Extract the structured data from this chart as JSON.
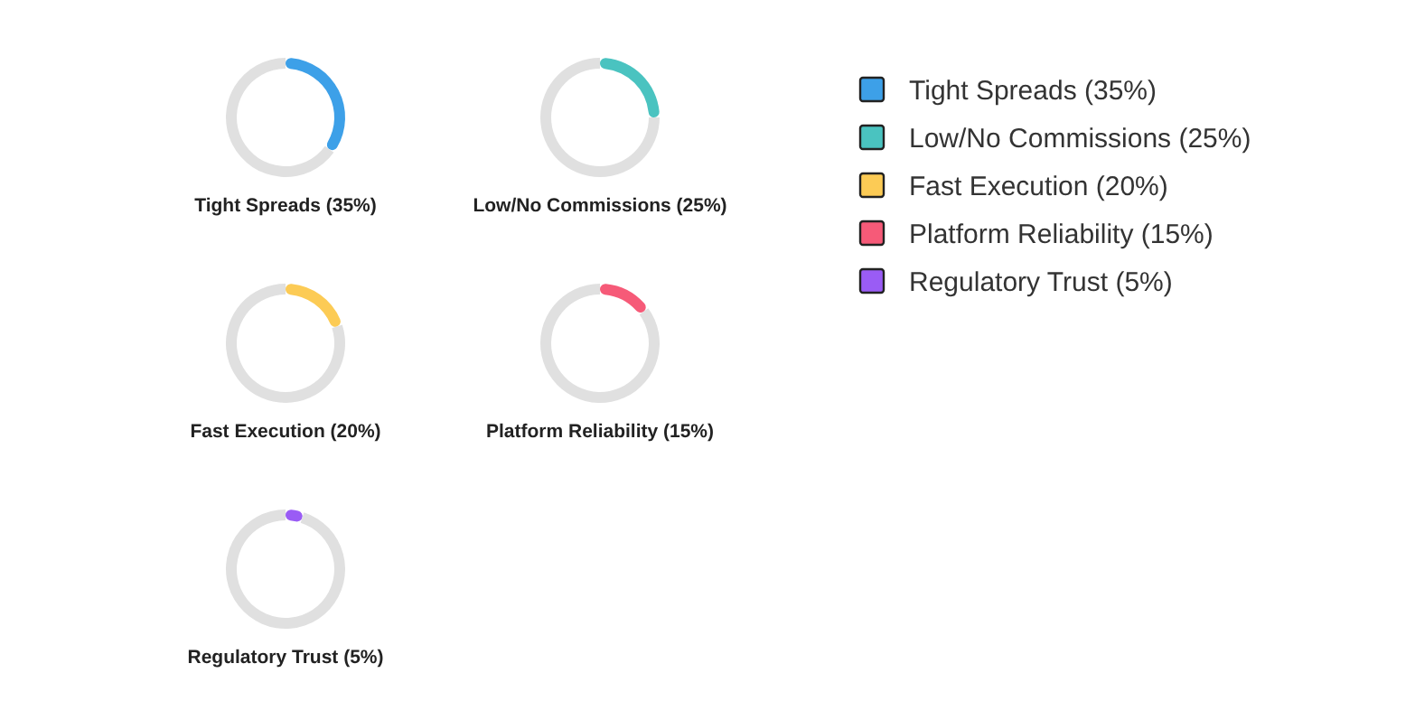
{
  "chart_data": [
    {
      "type": "donut",
      "title": "Tight Spreads (35%)",
      "categories": [
        "Tight Spreads (35%)",
        null
      ],
      "values": [
        35,
        65
      ],
      "colors": [
        "#3da0e8",
        "#e0e0e0"
      ],
      "legend": "right"
    },
    {
      "type": "donut",
      "title": "Low/No Commissions (25%)",
      "categories": [
        "Low/No Commissions (25%)",
        null
      ],
      "values": [
        25,
        75
      ],
      "colors": [
        "#4ac3c0",
        "#e0e0e0"
      ],
      "legend": "right"
    },
    {
      "type": "donut",
      "title": "Fast Execution (20%)",
      "categories": [
        "Fast Execution (20%)",
        null
      ],
      "values": [
        20,
        80
      ],
      "colors": [
        "#fccb55",
        "#e0e0e0"
      ],
      "legend": "right"
    },
    {
      "type": "donut",
      "title": "Platform Reliability (15%)",
      "categories": [
        "Platform Reliability (15%)",
        null
      ],
      "values": [
        15,
        85
      ],
      "colors": [
        "#f65a78",
        "#e0e0e0"
      ],
      "legend": "right"
    },
    {
      "type": "donut",
      "title": "Regulatory Trust (5%)",
      "categories": [
        "Regulatory Trust (5%)",
        null
      ],
      "values": [
        5,
        95
      ],
      "colors": [
        "#9a5cf5",
        "#e0e0e0"
      ],
      "legend": "right"
    }
  ]
}
